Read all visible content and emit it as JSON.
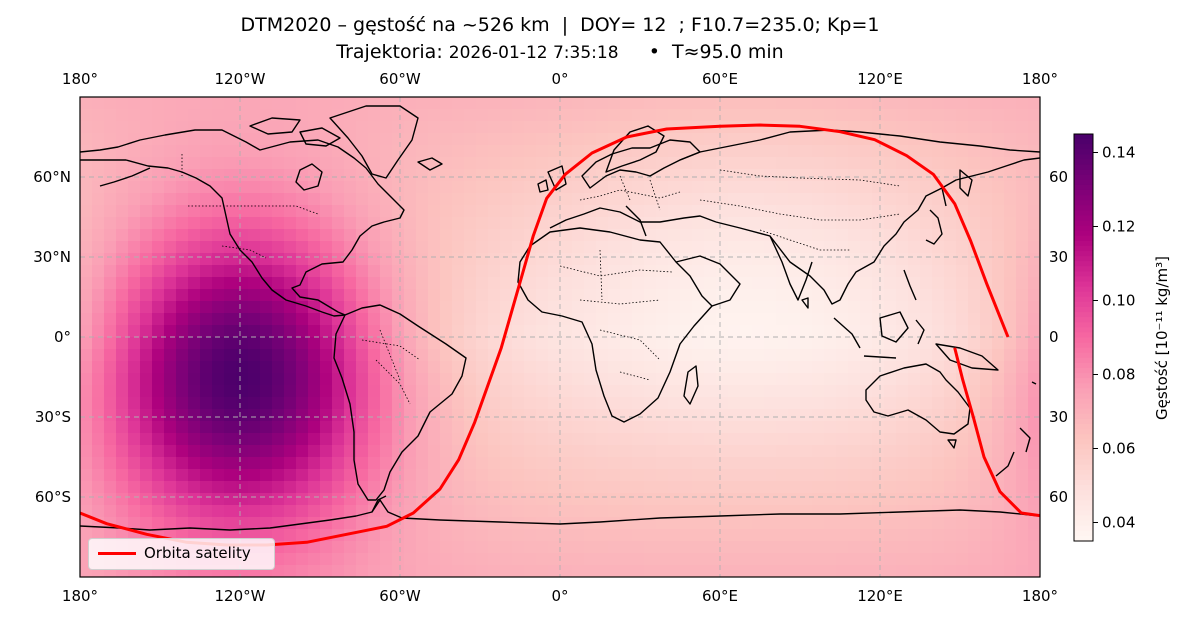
{
  "header": {
    "title_line1": "DTM2020 – gęstość na ~526 km  |  DOY= 12  ; F10.7=235.0; Kp=1",
    "title_line2_prefix": "Trajektoria: ",
    "title_line2_timestamp": "2026-01-12 7:35:18",
    "title_line2_suffix": "     •  T≈95.0 min"
  },
  "map": {
    "lon_ticks": [
      "180°",
      "120°W",
      "60°W",
      "0°",
      "60°E",
      "120°E",
      "180°"
    ],
    "lat_ticks_left": [
      "60°N",
      "30°N",
      "0°",
      "30°S",
      "60°S"
    ],
    "lat_ticks_right": [
      "60",
      "30",
      "0",
      "30",
      "60"
    ],
    "gridlines": true,
    "colormap": "RdPu",
    "colors": {
      "land_outline": "#000000",
      "borders": "#000000",
      "trajectory": "#ff0000",
      "grid": "#b0b0b0"
    }
  },
  "density_model": {
    "peak_lon": -120,
    "peak_lat": -15,
    "min_lon": 70,
    "min_lat": 20,
    "vmin": 0.035,
    "vmax": 0.145
  },
  "trajectory": {
    "segment_1": [
      [
        -180,
        -66
      ],
      [
        -170,
        -70
      ],
      [
        -155,
        -74
      ],
      [
        -140,
        -77
      ],
      [
        -125,
        -78
      ],
      [
        -110,
        -78
      ],
      [
        -95,
        -77
      ],
      [
        -80,
        -74
      ],
      [
        -65,
        -71
      ],
      [
        -55,
        -66
      ],
      [
        -45,
        -57
      ],
      [
        -38,
        -46
      ],
      [
        -32,
        -32
      ],
      [
        -27,
        -18
      ],
      [
        -22,
        -4
      ],
      [
        -18,
        10
      ],
      [
        -14,
        24
      ],
      [
        -10,
        38
      ],
      [
        -5,
        52
      ],
      [
        2,
        61
      ],
      [
        12,
        69
      ],
      [
        25,
        75
      ],
      [
        40,
        78
      ],
      [
        60,
        79
      ],
      [
        75,
        79.5
      ],
      [
        90,
        79
      ],
      [
        105,
        77
      ],
      [
        118,
        74
      ],
      [
        130,
        68
      ],
      [
        140,
        61
      ],
      [
        148,
        50
      ],
      [
        154,
        36
      ],
      [
        160,
        20
      ],
      [
        168,
        0
      ]
    ],
    "segment_2": [
      [
        148,
        -4
      ],
      [
        151,
        -16
      ],
      [
        155,
        -30
      ],
      [
        159,
        -45
      ],
      [
        165,
        -58
      ],
      [
        173,
        -66
      ],
      [
        180,
        -67
      ]
    ]
  },
  "colorbar": {
    "label": "Gęstość [10⁻¹¹ kg/m³]",
    "ticks": [
      "0.04",
      "0.06",
      "0.08",
      "0.10",
      "0.12",
      "0.14"
    ],
    "tick_values": [
      0.04,
      0.06,
      0.08,
      0.1,
      0.12,
      0.14
    ],
    "vmin": 0.035,
    "vmax": 0.145
  },
  "legend": {
    "label": "Orbita satelity"
  }
}
